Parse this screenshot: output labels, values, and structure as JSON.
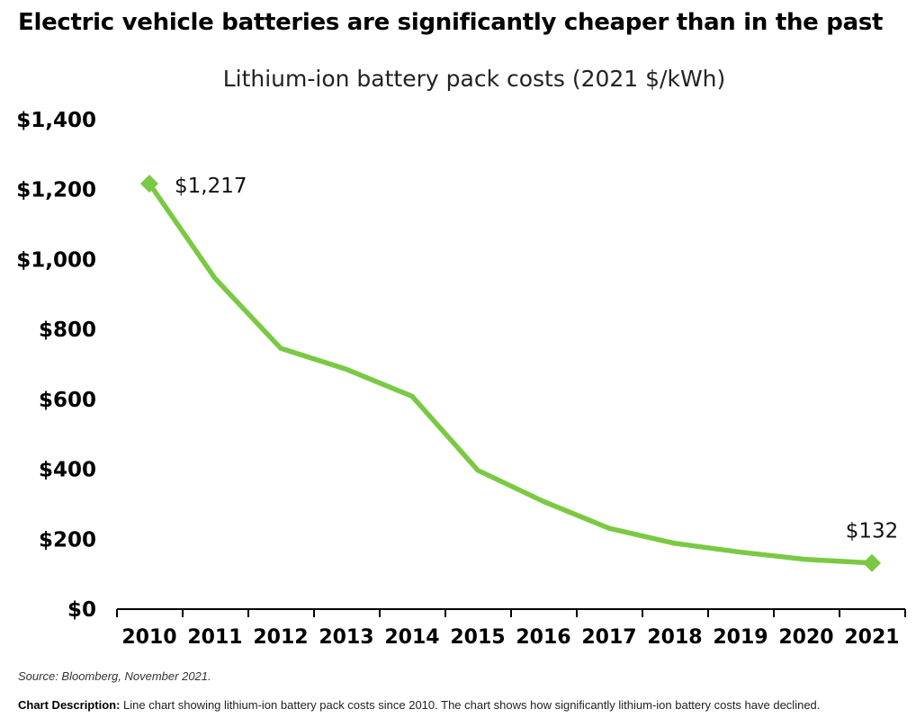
{
  "headline": "Electric vehicle batteries are significantly cheaper than in the past",
  "source": "Source: Bloomberg, November 2021.",
  "description_label": "Chart Description:",
  "description_text": " Line chart showing lithium-ion battery pack costs since 2010. The chart shows how significantly lithium-ion battery costs have declined.",
  "colors": {
    "line": "#7ac943",
    "axis": "#000000"
  },
  "chart_data": {
    "type": "line",
    "title": "Lithium-ion battery pack costs (2021 $/kWh)",
    "x": [
      "2010",
      "2011",
      "2012",
      "2013",
      "2014",
      "2015",
      "2016",
      "2017",
      "2018",
      "2019",
      "2020",
      "2021"
    ],
    "series": [
      {
        "values": [
          1217,
          946,
          746,
          686,
          609,
          397,
          308,
          231,
          188,
          163,
          142,
          132
        ]
      }
    ],
    "ylim": [
      0,
      1400
    ],
    "yticks": [
      0,
      200,
      400,
      600,
      800,
      1000,
      1200,
      1400
    ],
    "ytick_labels": [
      "$0",
      "$200",
      "$400",
      "$600",
      "$800",
      "$1,000",
      "$1,200",
      "$1,400"
    ],
    "data_labels": [
      {
        "x": "2010",
        "text": "$1,217"
      },
      {
        "x": "2021",
        "text": "$132"
      }
    ],
    "markers": [
      "2010",
      "2021"
    ],
    "grid": false,
    "legend": "none"
  }
}
